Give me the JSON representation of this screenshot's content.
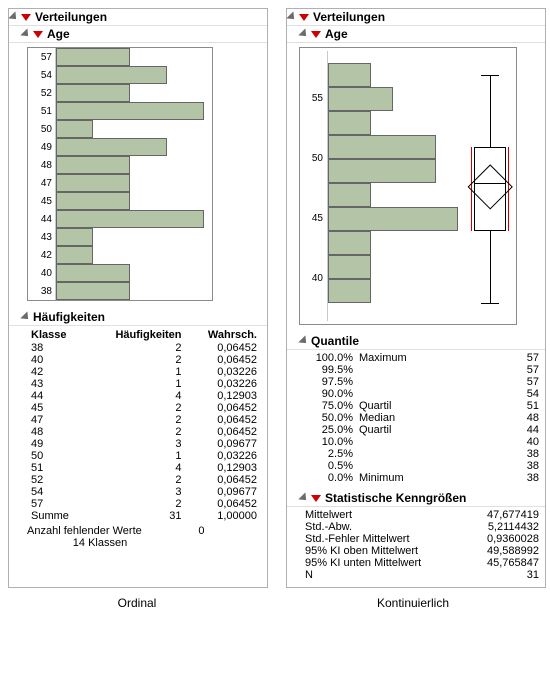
{
  "colors": {
    "bar_fill": "#b4c5a7",
    "bar_border": "#666666",
    "panel_border": "#b0b0b0",
    "axis": "#c9c9c9",
    "red": "#cc0000",
    "tri": "#6b6b6b"
  },
  "left": {
    "title": "Verteilungen",
    "sub": "Age",
    "caption": "Ordinal",
    "chart": {
      "type": "ordinal-bar-horizontal",
      "max_count": 4,
      "rows": [
        {
          "label": "57",
          "count": 2
        },
        {
          "label": "54",
          "count": 3
        },
        {
          "label": "52",
          "count": 2
        },
        {
          "label": "51",
          "count": 4
        },
        {
          "label": "50",
          "count": 1
        },
        {
          "label": "49",
          "count": 3
        },
        {
          "label": "48",
          "count": 2
        },
        {
          "label": "47",
          "count": 2
        },
        {
          "label": "45",
          "count": 2
        },
        {
          "label": "44",
          "count": 4
        },
        {
          "label": "43",
          "count": 1
        },
        {
          "label": "42",
          "count": 1
        },
        {
          "label": "40",
          "count": 2
        },
        {
          "label": "38",
          "count": 2
        }
      ]
    },
    "freq": {
      "title": "Häufigkeiten",
      "headers": [
        "Klasse",
        "Häufigkeiten",
        "Wahrsch."
      ],
      "rows": [
        [
          "38",
          "2",
          "0,06452"
        ],
        [
          "40",
          "2",
          "0,06452"
        ],
        [
          "42",
          "1",
          "0,03226"
        ],
        [
          "43",
          "1",
          "0,03226"
        ],
        [
          "44",
          "4",
          "0,12903"
        ],
        [
          "45",
          "2",
          "0,06452"
        ],
        [
          "47",
          "2",
          "0,06452"
        ],
        [
          "48",
          "2",
          "0,06452"
        ],
        [
          "49",
          "3",
          "0,09677"
        ],
        [
          "50",
          "1",
          "0,03226"
        ],
        [
          "51",
          "4",
          "0,12903"
        ],
        [
          "52",
          "2",
          "0,06452"
        ],
        [
          "54",
          "3",
          "0,09677"
        ],
        [
          "57",
          "2",
          "0,06452"
        ]
      ],
      "sum_label": "Summe",
      "sum_n": "31",
      "sum_p": "1,00000",
      "missing_label": "Anzahl fehlender Werte",
      "missing_val": "0",
      "classes_label": "Klassen",
      "classes_n": "14"
    }
  },
  "right": {
    "title": "Verteilungen",
    "sub": "Age",
    "caption": "Kontinuierlich",
    "chart": {
      "type": "histogram-horizontal-with-boxplot",
      "ymin": 37,
      "ymax": 59,
      "yticks": [
        55,
        50,
        45,
        40
      ],
      "bins": [
        {
          "lo": 56,
          "hi": 58,
          "count": 2
        },
        {
          "lo": 54,
          "hi": 56,
          "count": 3
        },
        {
          "lo": 52,
          "hi": 54,
          "count": 2
        },
        {
          "lo": 50,
          "hi": 52,
          "count": 5
        },
        {
          "lo": 48,
          "hi": 50,
          "count": 5
        },
        {
          "lo": 46,
          "hi": 48,
          "count": 2
        },
        {
          "lo": 44,
          "hi": 46,
          "count": 6
        },
        {
          "lo": 42,
          "hi": 44,
          "count": 2
        },
        {
          "lo": 40,
          "hi": 42,
          "count": 2
        },
        {
          "lo": 38,
          "hi": 40,
          "count": 2
        }
      ],
      "max_bin": 6,
      "boxplot": {
        "min": 38,
        "q1": 44,
        "median": 48,
        "q3": 51,
        "max": 57,
        "mean": 47.677419,
        "ci_lo": 45.765847,
        "ci_hi": 49.588992
      }
    },
    "quantiles": {
      "title": "Quantile",
      "rows": [
        [
          "100.0%",
          "Maximum",
          "57"
        ],
        [
          "99.5%",
          "",
          "57"
        ],
        [
          "97.5%",
          "",
          "57"
        ],
        [
          "90.0%",
          "",
          "54"
        ],
        [
          "75.0%",
          "Quartil",
          "51"
        ],
        [
          "50.0%",
          "Median",
          "48"
        ],
        [
          "25.0%",
          "Quartil",
          "44"
        ],
        [
          "10.0%",
          "",
          "40"
        ],
        [
          "2.5%",
          "",
          "38"
        ],
        [
          "0.5%",
          "",
          "38"
        ],
        [
          "0.0%",
          "Minimum",
          "38"
        ]
      ]
    },
    "stats": {
      "title": "Statistische Kenngrößen",
      "rows": [
        [
          "Mittelwert",
          "47,677419"
        ],
        [
          "Std.-Abw.",
          "5,2114432"
        ],
        [
          "Std.-Fehler Mittelwert",
          "0,9360028"
        ],
        [
          "95% KI oben Mittelwert",
          "49,588992"
        ],
        [
          "95% KI unten Mittelwert",
          "45,765847"
        ],
        [
          "N",
          "31"
        ]
      ]
    }
  }
}
